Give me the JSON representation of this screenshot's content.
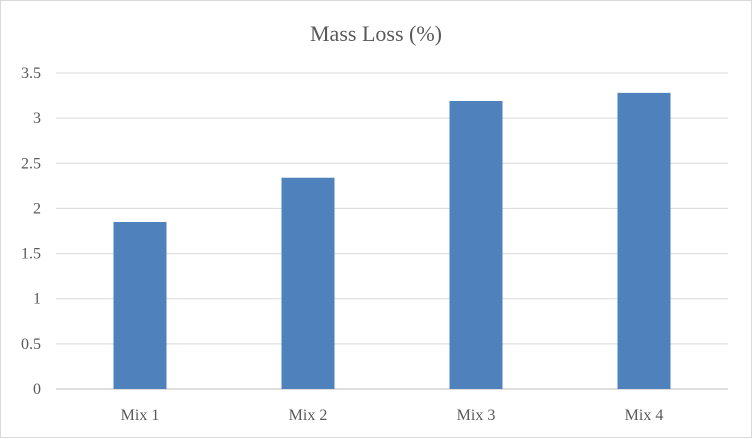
{
  "chart_data": {
    "type": "bar",
    "title": "Mass Loss (%)",
    "xlabel": "",
    "ylabel": "",
    "categories": [
      "Mix 1",
      "Mix 2",
      "Mix 3",
      "Mix 4"
    ],
    "values": [
      1.85,
      2.34,
      3.19,
      3.28
    ],
    "ylim": [
      0,
      3.5
    ],
    "yticks": [
      0,
      0.5,
      1,
      1.5,
      2,
      2.5,
      3,
      3.5
    ],
    "ytick_labels": [
      "0",
      "0.5",
      "1",
      "1.5",
      "2",
      "2.5",
      "3",
      "3.5"
    ],
    "grid": true,
    "legend": "none",
    "bar_color": "#4f81bd"
  }
}
